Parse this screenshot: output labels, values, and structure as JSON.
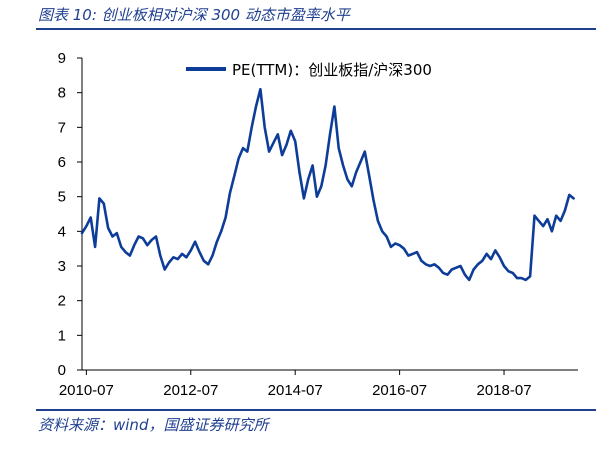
{
  "figure": {
    "title": "图表 10:  创业板相对沪深 300 动态市盈率水平",
    "source": "资料来源：wind，国盛证券研究所"
  },
  "colors": {
    "series": "#0d3d99",
    "axis": "#000000",
    "rule": "#1f3f8f"
  },
  "chart_data": {
    "type": "line",
    "title": "",
    "xlabel": "",
    "ylabel": "",
    "ylim": [
      0,
      9
    ],
    "xlim": [
      "2010-06",
      "2019-12"
    ],
    "x_tick_labels": [
      "2010-07",
      "2012-07",
      "2014-07",
      "2016-07",
      "2018-07"
    ],
    "y_tick_labels": [
      "0",
      "1",
      "2",
      "3",
      "4",
      "5",
      "6",
      "7",
      "8",
      "9"
    ],
    "grid": false,
    "legend_position": "top-center",
    "series": [
      {
        "name": "PE(TTM)：创业板指/沪深300",
        "x": [
          "2010-06",
          "2010-07",
          "2010-08",
          "2010-09",
          "2010-10",
          "2010-11",
          "2010-12",
          "2011-01",
          "2011-02",
          "2011-03",
          "2011-04",
          "2011-05",
          "2011-06",
          "2011-07",
          "2011-08",
          "2011-09",
          "2011-10",
          "2011-11",
          "2011-12",
          "2012-01",
          "2012-02",
          "2012-03",
          "2012-04",
          "2012-05",
          "2012-06",
          "2012-07",
          "2012-08",
          "2012-09",
          "2012-10",
          "2012-11",
          "2012-12",
          "2013-01",
          "2013-02",
          "2013-03",
          "2013-04",
          "2013-05",
          "2013-06",
          "2013-07",
          "2013-08",
          "2013-09",
          "2013-10",
          "2013-11",
          "2013-12",
          "2014-01",
          "2014-02",
          "2014-03",
          "2014-04",
          "2014-05",
          "2014-06",
          "2014-07",
          "2014-08",
          "2014-09",
          "2014-10",
          "2014-11",
          "2014-12",
          "2015-01",
          "2015-02",
          "2015-03",
          "2015-04",
          "2015-05",
          "2015-06",
          "2015-07",
          "2015-08",
          "2015-09",
          "2015-10",
          "2015-11",
          "2015-12",
          "2016-01",
          "2016-02",
          "2016-03",
          "2016-04",
          "2016-05",
          "2016-06",
          "2016-07",
          "2016-08",
          "2016-09",
          "2016-10",
          "2016-11",
          "2016-12",
          "2017-01",
          "2017-02",
          "2017-03",
          "2017-04",
          "2017-05",
          "2017-06",
          "2017-07",
          "2017-08",
          "2017-09",
          "2017-10",
          "2017-11",
          "2017-12",
          "2018-01",
          "2018-02",
          "2018-03",
          "2018-04",
          "2018-05",
          "2018-06",
          "2018-07",
          "2018-08",
          "2018-09",
          "2018-10",
          "2018-11",
          "2018-12",
          "2019-01",
          "2019-02",
          "2019-03",
          "2019-04",
          "2019-05",
          "2019-06",
          "2019-07",
          "2019-08",
          "2019-09",
          "2019-10",
          "2019-11"
        ],
        "values": [
          3.95,
          4.15,
          4.4,
          3.55,
          4.95,
          4.8,
          4.1,
          3.85,
          3.95,
          3.55,
          3.4,
          3.3,
          3.6,
          3.85,
          3.8,
          3.6,
          3.75,
          3.85,
          3.3,
          2.9,
          3.1,
          3.25,
          3.2,
          3.35,
          3.25,
          3.45,
          3.7,
          3.4,
          3.15,
          3.05,
          3.3,
          3.7,
          4.0,
          4.4,
          5.1,
          5.6,
          6.1,
          6.4,
          6.3,
          7.0,
          7.6,
          8.1,
          7.0,
          6.3,
          6.55,
          6.8,
          6.2,
          6.5,
          6.9,
          6.6,
          5.7,
          4.95,
          5.5,
          5.9,
          5.0,
          5.3,
          5.9,
          6.8,
          7.6,
          6.4,
          5.9,
          5.5,
          5.3,
          5.7,
          6.0,
          6.3,
          5.6,
          4.9,
          4.3,
          4.0,
          3.85,
          3.55,
          3.65,
          3.6,
          3.5,
          3.3,
          3.35,
          3.4,
          3.15,
          3.05,
          3.0,
          3.05,
          2.95,
          2.8,
          2.75,
          2.9,
          2.95,
          3.0,
          2.75,
          2.6,
          2.9,
          3.05,
          3.15,
          3.35,
          3.2,
          3.45,
          3.25,
          3.0,
          2.85,
          2.8,
          2.65,
          2.65,
          2.6,
          2.7,
          4.45,
          4.3,
          4.15,
          4.35,
          4.0,
          4.45,
          4.3,
          4.6,
          5.05,
          4.95
        ]
      }
    ]
  }
}
